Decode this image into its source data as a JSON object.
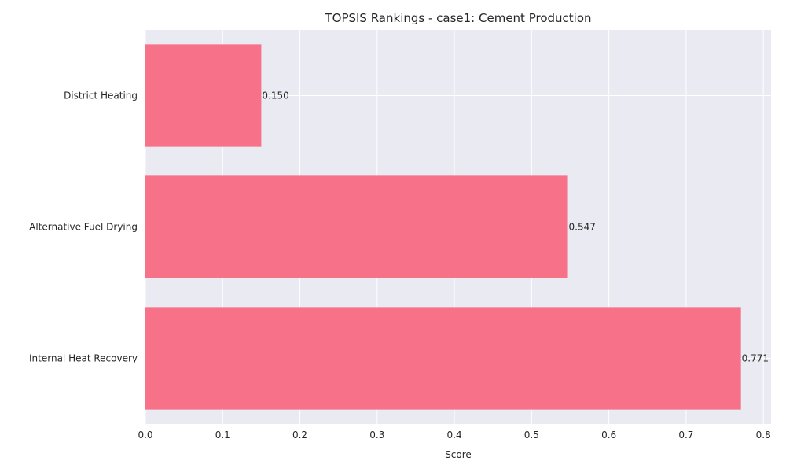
{
  "chart_data": {
    "type": "bar",
    "orientation": "horizontal",
    "title": "TOPSIS Rankings - case1: Cement Production",
    "xlabel": "Score",
    "ylabel": "",
    "categories": [
      "District Heating",
      "Alternative Fuel Drying",
      "Internal Heat Recovery"
    ],
    "values": [
      0.15,
      0.547,
      0.771
    ],
    "value_labels": [
      "0.150",
      "0.547",
      "0.771"
    ],
    "xlim": [
      0,
      0.81
    ],
    "xticks": [
      0.0,
      0.1,
      0.2,
      0.3,
      0.4,
      0.5,
      0.6,
      0.7,
      0.8
    ],
    "xtick_labels": [
      "0.0",
      "0.1",
      "0.2",
      "0.3",
      "0.4",
      "0.5",
      "0.6",
      "0.7",
      "0.8"
    ],
    "grid": true,
    "colors": {
      "bar": "#f77189",
      "plot_background": "#eaeaf2",
      "grid": "#ffffff"
    }
  }
}
